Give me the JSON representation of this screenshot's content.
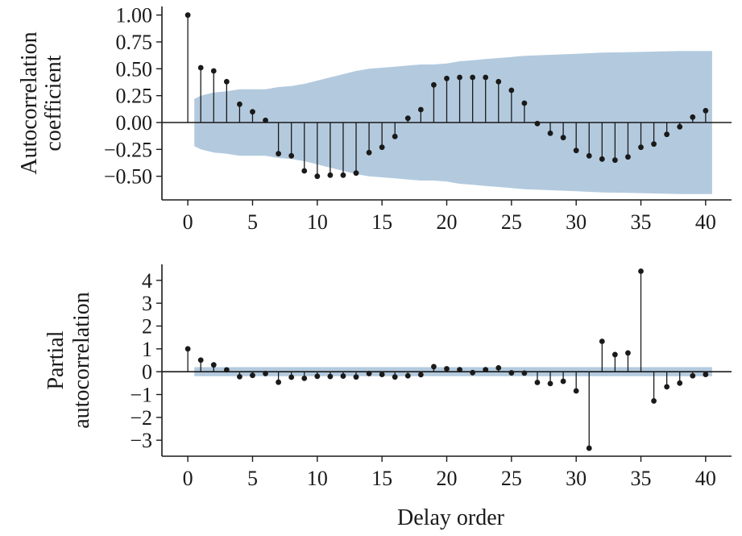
{
  "chart_data": [
    {
      "type": "stem",
      "ylabel_lines": [
        "Autocorrelation",
        "coefficient"
      ],
      "xlabel": "",
      "xlim": [
        -2,
        42
      ],
      "ylim": [
        -0.72,
        1.08
      ],
      "x_ticks": [
        0,
        5,
        10,
        15,
        20,
        25,
        30,
        35,
        40
      ],
      "y_ticks": [
        1.0,
        0.75,
        0.5,
        0.25,
        0.0,
        -0.25,
        -0.5
      ],
      "y_tick_labels": [
        "1.00",
        "0.75",
        "0.50",
        "0.25",
        "0.00",
        "−0.25",
        "−0.50"
      ],
      "x": [
        0,
        1,
        2,
        3,
        4,
        5,
        6,
        7,
        8,
        9,
        10,
        11,
        12,
        13,
        14,
        15,
        16,
        17,
        18,
        19,
        20,
        21,
        22,
        23,
        24,
        25,
        26,
        27,
        28,
        29,
        30,
        31,
        32,
        33,
        34,
        35,
        36,
        37,
        38,
        39,
        40
      ],
      "values": [
        1.0,
        0.51,
        0.48,
        0.38,
        0.17,
        0.1,
        0.02,
        -0.29,
        -0.31,
        -0.45,
        -0.5,
        -0.49,
        -0.49,
        -0.47,
        -0.28,
        -0.23,
        -0.13,
        0.04,
        0.12,
        0.35,
        0.41,
        0.42,
        0.42,
        0.42,
        0.38,
        0.3,
        0.18,
        -0.01,
        -0.1,
        -0.14,
        -0.26,
        -0.31,
        -0.34,
        -0.35,
        -0.32,
        -0.23,
        -0.2,
        -0.11,
        -0.04,
        0.05,
        0.11
      ],
      "confidence_band": {
        "x": [
          0.5,
          1,
          2,
          3,
          4,
          5,
          6,
          7,
          8,
          9,
          10,
          11,
          12,
          13,
          14,
          15,
          16,
          17,
          18,
          19,
          20,
          21,
          22,
          23,
          24,
          25,
          26,
          28,
          30,
          32,
          34,
          36,
          38,
          40,
          40.5
        ],
        "upper": [
          0.22,
          0.25,
          0.28,
          0.29,
          0.31,
          0.31,
          0.31,
          0.33,
          0.34,
          0.36,
          0.39,
          0.42,
          0.45,
          0.48,
          0.5,
          0.51,
          0.52,
          0.53,
          0.54,
          0.54,
          0.55,
          0.57,
          0.58,
          0.59,
          0.6,
          0.61,
          0.62,
          0.63,
          0.64,
          0.65,
          0.655,
          0.66,
          0.665,
          0.665,
          0.665
        ],
        "color": "#b3cade"
      },
      "stem_color": "#1a1a1a",
      "marker_color": "#1a1a1a"
    },
    {
      "type": "stem",
      "ylabel_lines": [
        "Partial",
        "autocorrelation"
      ],
      "xlabel": "Delay order",
      "xlim": [
        -2,
        42
      ],
      "ylim": [
        -3.7,
        4.7
      ],
      "x_ticks": [
        0,
        5,
        10,
        15,
        20,
        25,
        30,
        35,
        40
      ],
      "y_ticks": [
        4,
        3,
        2,
        1,
        0,
        -1,
        -2,
        -3
      ],
      "y_tick_labels": [
        "4",
        "3",
        "2",
        "1",
        "0",
        "−1",
        "−2",
        "−3"
      ],
      "x": [
        0,
        1,
        2,
        3,
        4,
        5,
        6,
        7,
        8,
        9,
        10,
        11,
        12,
        13,
        14,
        15,
        16,
        17,
        18,
        19,
        20,
        21,
        22,
        23,
        24,
        25,
        26,
        27,
        28,
        29,
        30,
        31,
        32,
        33,
        34,
        35,
        36,
        37,
        38,
        39,
        40
      ],
      "values": [
        1.0,
        0.51,
        0.3,
        0.08,
        -0.22,
        -0.16,
        -0.08,
        -0.46,
        -0.24,
        -0.29,
        -0.2,
        -0.21,
        -0.19,
        -0.23,
        -0.08,
        -0.12,
        -0.23,
        -0.18,
        -0.13,
        0.22,
        0.13,
        0.09,
        -0.04,
        0.09,
        0.17,
        -0.05,
        -0.06,
        -0.47,
        -0.52,
        -0.42,
        -0.84,
        -3.35,
        1.33,
        0.75,
        0.82,
        4.4,
        -1.28,
        -0.66,
        -0.5,
        -0.18,
        -0.12
      ],
      "confidence_band": {
        "x": [
          0.5,
          40.5
        ],
        "upper": [
          0.2,
          0.2
        ],
        "color": "#b3cade"
      },
      "stem_color": "#1a1a1a",
      "marker_color": "#1a1a1a"
    }
  ]
}
